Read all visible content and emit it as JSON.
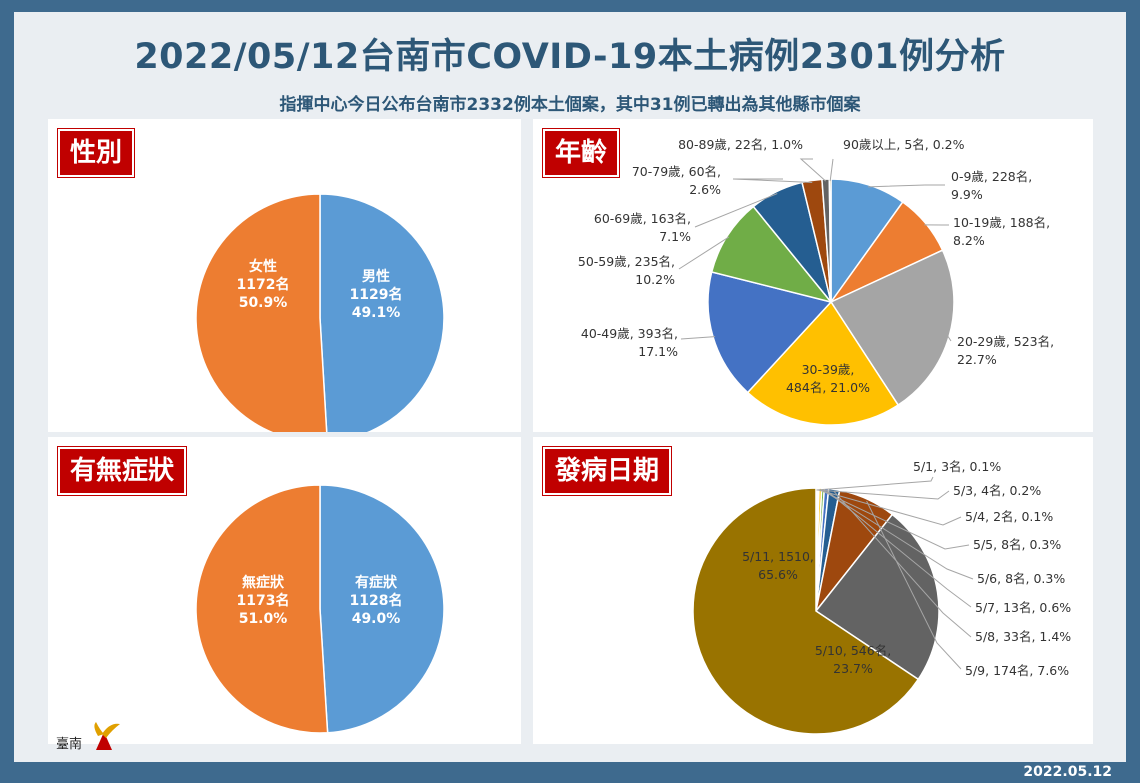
{
  "header": {
    "title": "2022/05/12台南市COVID-19本土病例2301例分析",
    "subtitle": "指揮中心今日公布台南市2332例本土個案，其中31例已轉出為其他縣市個案"
  },
  "footer": {
    "date": "2022.05.12"
  },
  "logo": {
    "text": "臺南",
    "icon": "tainan-city-logo-icon"
  },
  "chart_data": [
    {
      "id": "gender",
      "badge": "性別",
      "type": "pie",
      "slices": [
        {
          "label": "男性",
          "count": "1129名",
          "pct": "49.1%",
          "value": 1129,
          "color": "#5b9bd5"
        },
        {
          "label": "女性",
          "count": "1172名",
          "pct": "50.9%",
          "value": 1172,
          "color": "#ed7d31"
        }
      ]
    },
    {
      "id": "age",
      "badge": "年齡",
      "type": "pie",
      "slices": [
        {
          "label": "0-9歲, 228名,",
          "pct": "9.9%",
          "value": 228,
          "color": "#5b9bd5"
        },
        {
          "label": "10-19歲, 188名,",
          "pct": "8.2%",
          "value": 188,
          "color": "#ed7d31"
        },
        {
          "label": "20-29歲, 523名,",
          "pct": "22.7%",
          "value": 523,
          "color": "#a5a5a5"
        },
        {
          "label": "30-39歲,",
          "pct": "484名, 21.0%",
          "value": 484,
          "color": "#ffc000"
        },
        {
          "label": "40-49歲, 393名,",
          "pct": "17.1%",
          "value": 393,
          "color": "#4472c4"
        },
        {
          "label": "50-59歲, 235名,",
          "pct": "10.2%",
          "value": 235,
          "color": "#70ad47"
        },
        {
          "label": "60-69歲, 163名,",
          "pct": "7.1%",
          "value": 163,
          "color": "#255e91"
        },
        {
          "label": "70-79歲, 60名,",
          "pct": "2.6%",
          "value": 60,
          "color": "#9e480e"
        },
        {
          "label": "80-89歲, 22名, 1.0%",
          "pct": "",
          "value": 22,
          "color": "#636363"
        },
        {
          "label": "90歲以上, 5名, 0.2%",
          "pct": "",
          "value": 5,
          "color": "#997300"
        }
      ]
    },
    {
      "id": "symptoms",
      "badge": "有無症狀",
      "type": "pie",
      "slices": [
        {
          "label": "有症狀",
          "count": "1128名",
          "pct": "49.0%",
          "value": 1128,
          "color": "#5b9bd5"
        },
        {
          "label": "無症狀",
          "count": "1173名",
          "pct": "51.0%",
          "value": 1173,
          "color": "#ed7d31"
        }
      ]
    },
    {
      "id": "onset",
      "badge": "發病日期",
      "type": "pie",
      "slices": [
        {
          "label": "5/1, 3名, 0.1%",
          "value": 3,
          "color": "#5b9bd5"
        },
        {
          "label": "5/3, 4名, 0.2%",
          "value": 4,
          "color": "#ed7d31"
        },
        {
          "label": "5/4, 2名, 0.1%",
          "value": 2,
          "color": "#a5a5a5"
        },
        {
          "label": "5/5, 8名, 0.3%",
          "value": 8,
          "color": "#ffc000"
        },
        {
          "label": "5/6, 8名, 0.3%",
          "value": 8,
          "color": "#70ad47"
        },
        {
          "label": "5/7, 13名, 0.6%",
          "value": 13,
          "color": "#4472c4"
        },
        {
          "label": "5/8, 33名, 1.4%",
          "value": 33,
          "color": "#255e91"
        },
        {
          "label": "5/9, 174名, 7.6%",
          "value": 174,
          "color": "#9e480e"
        },
        {
          "label": "5/10, 546名,",
          "pct": "23.7%",
          "value": 546,
          "color": "#636363"
        },
        {
          "label": "5/11, 1510,",
          "pct": "65.6%",
          "value": 1510,
          "color": "#997300"
        }
      ]
    }
  ]
}
